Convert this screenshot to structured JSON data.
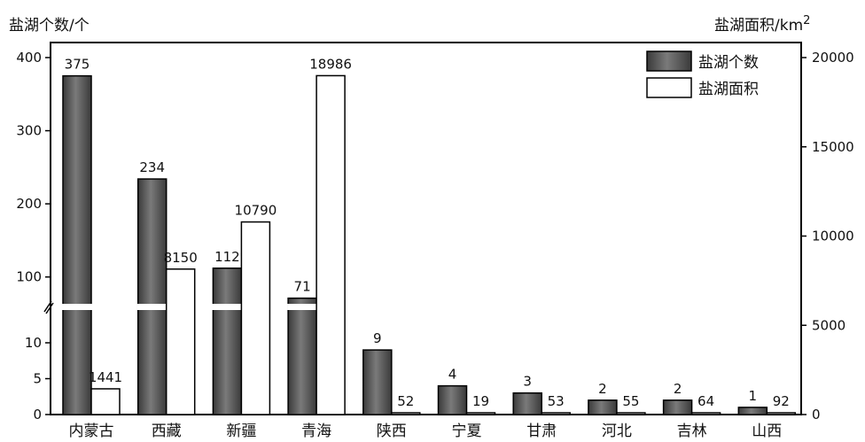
{
  "chart_data": {
    "type": "bar",
    "y_left_label": "盐湖个数/个",
    "y_right_label": "盐湖面积/km",
    "y_right_label_sup": "2",
    "categories": [
      "内蒙古",
      "西藏",
      "新疆",
      "青海",
      "陕西",
      "宁夏",
      "甘肃",
      "河北",
      "吉林",
      "山西"
    ],
    "series": [
      {
        "name": "盐湖个数",
        "axis": "left",
        "values": [
          375,
          234,
          112,
          71,
          9,
          4,
          3,
          2,
          2,
          1
        ],
        "labels": [
          "375",
          "234",
          "112",
          "71",
          "9",
          "4",
          "3",
          "2",
          "2",
          "1"
        ],
        "color": "#555555"
      },
      {
        "name": "盐湖面积",
        "axis": "right",
        "values": [
          1441,
          8150,
          10790,
          18986,
          52,
          19,
          53,
          55,
          64,
          92
        ],
        "labels": [
          "1441",
          "8150",
          "10790",
          "18986",
          "52",
          "19",
          "53",
          "55",
          "64",
          "92"
        ],
        "color": "#ffffff"
      }
    ],
    "y_left_ticks": [
      "0",
      "5",
      "10",
      "100",
      "200",
      "300",
      "400"
    ],
    "y_left_tick_values": [
      0,
      5,
      10,
      100,
      200,
      300,
      400
    ],
    "y_left_scale": "broken",
    "y_right_ticks": [
      "0",
      "5000",
      "10000",
      "15000",
      "20000"
    ],
    "y_right_tick_values": [
      0,
      5000,
      10000,
      15000,
      20000
    ],
    "y_right_lim": [
      0,
      20000
    ],
    "legend_position": "top-right",
    "grid": false
  }
}
